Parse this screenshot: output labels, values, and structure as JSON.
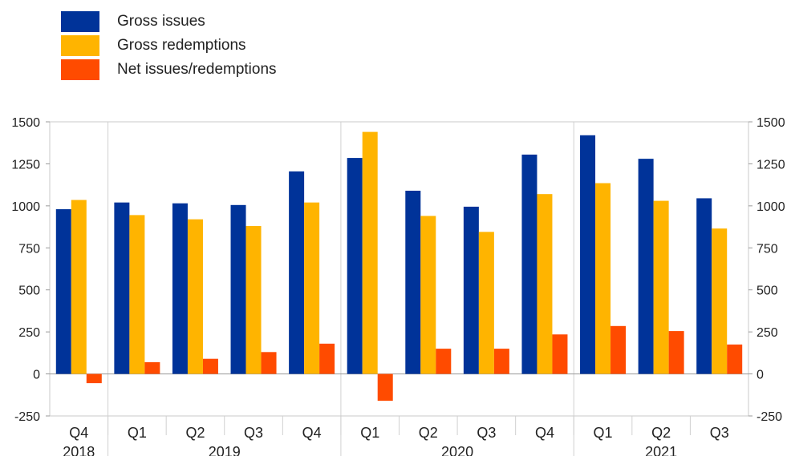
{
  "chart_data": {
    "type": "bar",
    "categories": [
      "Q4",
      "Q1",
      "Q2",
      "Q3",
      "Q4",
      "Q1",
      "Q2",
      "Q3",
      "Q4",
      "Q1",
      "Q2",
      "Q3"
    ],
    "years": [
      {
        "label": "2018",
        "start": 0,
        "end": 0
      },
      {
        "label": "2019",
        "start": 1,
        "end": 4
      },
      {
        "label": "2020",
        "start": 5,
        "end": 8
      },
      {
        "label": "2021",
        "start": 9,
        "end": 11
      }
    ],
    "series": [
      {
        "name": "Gross issues",
        "color": "#003399",
        "values": [
          980,
          1020,
          1015,
          1005,
          1205,
          1285,
          1090,
          995,
          1305,
          1420,
          1280,
          1045
        ]
      },
      {
        "name": "Gross redemptions",
        "color": "#FFB400",
        "values": [
          1035,
          945,
          920,
          880,
          1020,
          1440,
          940,
          845,
          1070,
          1135,
          1030,
          865
        ]
      },
      {
        "name": "Net issues/redemptions",
        "color": "#FF4B00",
        "values": [
          -55,
          70,
          90,
          130,
          180,
          -160,
          150,
          150,
          235,
          285,
          255,
          175
        ]
      }
    ],
    "ylim": [
      -250,
      1500
    ],
    "yticks": [
      1500,
      1250,
      1000,
      750,
      500,
      250,
      0,
      -250
    ],
    "ytick_labels": [
      "1500",
      "1250",
      "1000",
      "750",
      "500",
      "250",
      "0",
      "-250"
    ],
    "y_axis_right": true,
    "legend_position": "top-left",
    "grid": false
  }
}
